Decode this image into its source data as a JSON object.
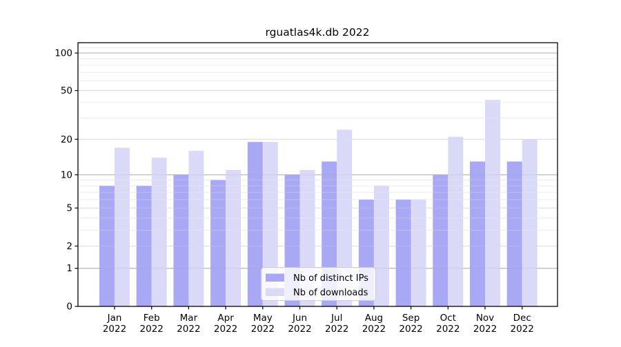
{
  "title": "rguatlas4k.db 2022",
  "chart_data": {
    "type": "bar",
    "title": "rguatlas4k.db 2022",
    "categories": [
      "Jan",
      "Feb",
      "Mar",
      "Apr",
      "May",
      "Jun",
      "Jul",
      "Aug",
      "Sep",
      "Oct",
      "Nov",
      "Dec"
    ],
    "year": "2022",
    "series": [
      {
        "name": "Nb of distinct IPs",
        "color": "#a8a8f4",
        "values": [
          8,
          8,
          10,
          9,
          19,
          10,
          13,
          6,
          6,
          10,
          13,
          13
        ]
      },
      {
        "name": "Nb of downloads",
        "color": "#dadaf8",
        "values": [
          17,
          14,
          16,
          11,
          19,
          11,
          24,
          8,
          6,
          21,
          42,
          20
        ]
      }
    ],
    "yscale": "log10(1+y)",
    "ylim": [
      0,
      121
    ],
    "yticks": [
      0,
      1,
      2,
      5,
      10,
      20,
      50,
      100
    ],
    "decade_gridlines": [
      1,
      10,
      100
    ],
    "minor_gridlines": [
      3,
      4,
      6,
      7,
      8,
      9,
      30,
      40,
      60,
      70,
      80,
      90,
      110
    ],
    "grid": true,
    "xlabel": "",
    "ylabel": "",
    "legend_position": "lower center inside"
  },
  "colors": {
    "background": "#ffffff",
    "axis": "#000000",
    "grid_decade": "#ababab",
    "grid_labeled": "#dbdbdb",
    "grid_minor": "#ededed",
    "legend_border": "#cccccc",
    "legend_bg": "#ffffff"
  },
  "legend": {
    "items": [
      "Nb of distinct IPs",
      "Nb of downloads"
    ]
  }
}
